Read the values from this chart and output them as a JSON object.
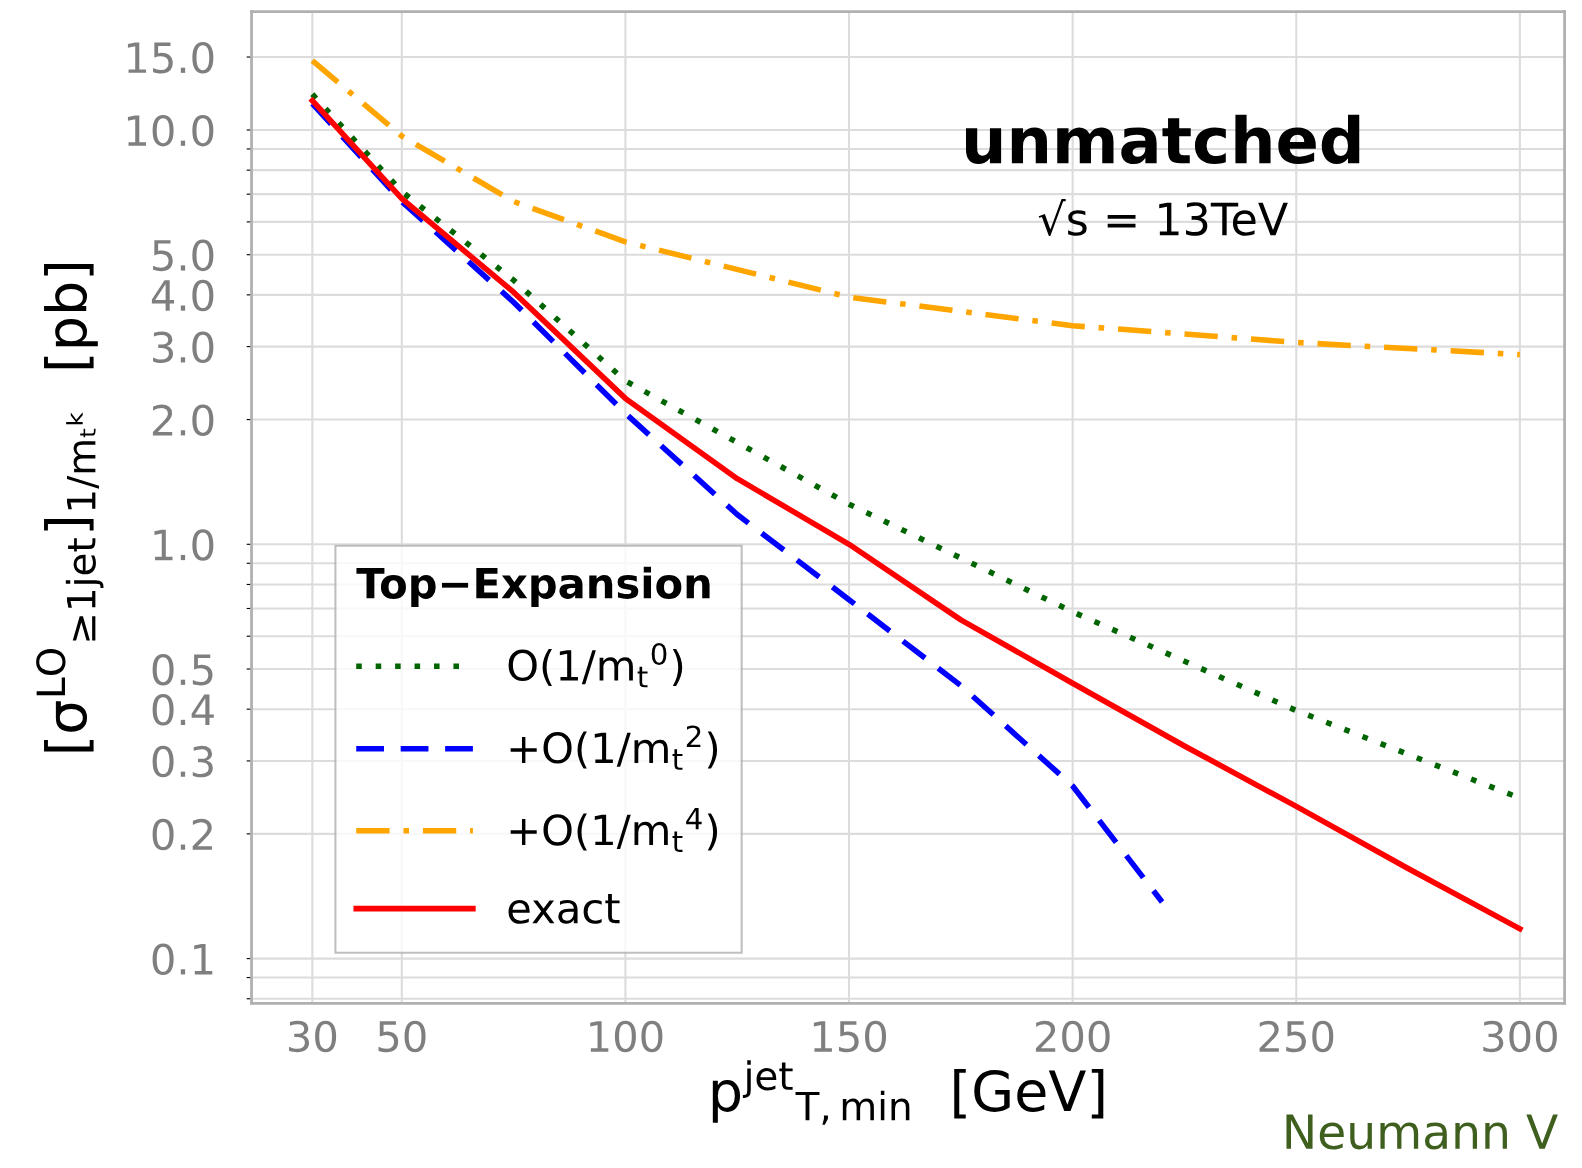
{
  "chart_data": {
    "type": "line",
    "xlabel": "p$^{jet}$$_{T,min}$  [GeV]",
    "ylabel": "[σ$^{LO}$$_{≥1jet}$]$_{1/mₜᵏ}$  [pb]",
    "legend_title": "Top−Expansion",
    "legend": "bottom left",
    "log": "y",
    "grid": true,
    "xlim": [
      16.4,
      310
    ],
    "ylim": [
      0.078,
      19.3
    ],
    "xticks": [
      30,
      50,
      100,
      150,
      200,
      250,
      300
    ],
    "yticks": [
      {
        "value": 0.08,
        "label": null
      },
      {
        "value": 0.09,
        "label": null
      },
      {
        "value": 0.1,
        "label": "0.1"
      },
      {
        "value": 0.2,
        "label": "0.2"
      },
      {
        "value": 0.3,
        "label": "0.3"
      },
      {
        "value": 0.4,
        "label": "0.4"
      },
      {
        "value": 0.5,
        "label": "0.5"
      },
      {
        "value": 0.6,
        "label": null
      },
      {
        "value": 0.7,
        "label": null
      },
      {
        "value": 0.8,
        "label": null
      },
      {
        "value": 0.9,
        "label": null
      },
      {
        "value": 1,
        "label": "1.0"
      },
      {
        "value": 2,
        "label": "2.0"
      },
      {
        "value": 3,
        "label": "3.0"
      },
      {
        "value": 4,
        "label": "4.0"
      },
      {
        "value": 5,
        "label": "5.0"
      },
      {
        "value": 6,
        "label": null
      },
      {
        "value": 7,
        "label": null
      },
      {
        "value": 8,
        "label": null
      },
      {
        "value": 9,
        "label": null
      },
      {
        "value": 10,
        "label": "10.0"
      },
      {
        "value": 15,
        "label": "15.0"
      }
    ],
    "annotations": [
      "unmatched",
      "√s = 13TeV",
      "Neumann V"
    ],
    "series": [
      {
        "name": "O(1/m$_{t}$$^{0}$)",
        "color": "#006400",
        "line_style": "dotted",
        "x": [
          30,
          50,
          75,
          100,
          150,
          200,
          250,
          300
        ],
        "values": [
          12.2,
          7.1,
          4.34,
          2.48,
          1.25,
          0.687,
          0.397,
          0.244
        ]
      },
      {
        "name": "+O(1/m$_{t}$$^{2}$)",
        "color": "#0000ff",
        "line_style": "dashed",
        "x": [
          30,
          50,
          75,
          100,
          125,
          150,
          175,
          200,
          220
        ],
        "values": [
          11.57,
          6.72,
          3.84,
          2.07,
          1.18,
          0.735,
          0.456,
          0.261,
          0.137
        ]
      },
      {
        "name": "+O(1/m$_{t}$$^{4}$)",
        "color": "#ffa500",
        "line_style": "dashdot",
        "x": [
          30,
          50,
          75,
          100,
          150,
          200,
          250,
          300
        ],
        "values": [
          14.7,
          9.67,
          6.72,
          5.37,
          3.95,
          3.37,
          3.07,
          2.87
        ]
      },
      {
        "name": "exact",
        "color": "#ff0000",
        "line_style": "solid",
        "x": [
          30,
          50,
          75,
          100,
          125,
          150,
          175,
          200,
          225,
          250,
          275,
          300
        ],
        "values": [
          11.77,
          6.83,
          4.06,
          2.25,
          1.44,
          1.0,
          0.657,
          0.462,
          0.326,
          0.233,
          0.165,
          0.118
        ]
      }
    ]
  }
}
